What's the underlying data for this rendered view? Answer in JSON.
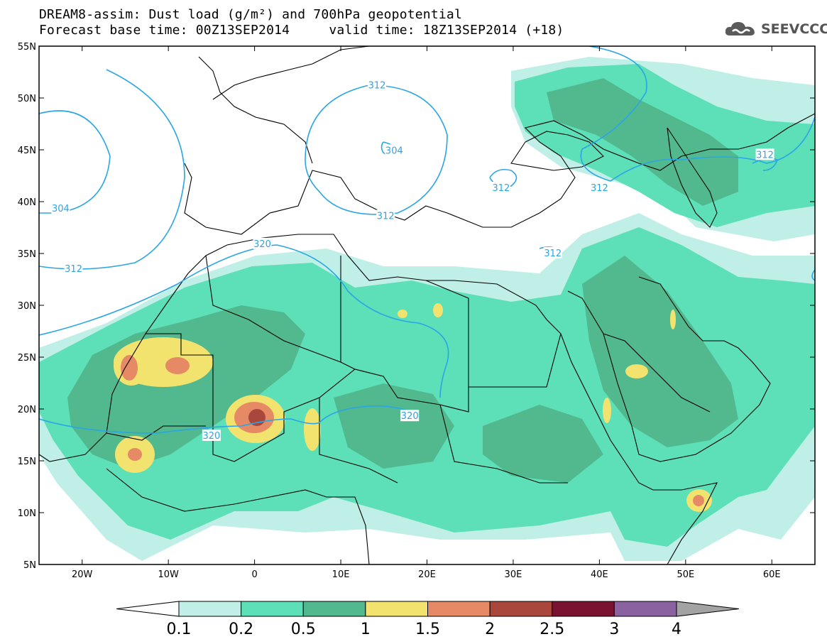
{
  "title": {
    "line1": "DREAM8-assim: Dust load (g/m²) and 700hPa geopotential",
    "line2": "Forecast base time: 00Z13SEP2014     valid time: 18Z13SEP2014 (+18)"
  },
  "brand": {
    "name": "SEEVCCC",
    "icon": "cloud-logo-icon"
  },
  "map": {
    "lon_range": [
      -25,
      65
    ],
    "lat_range": [
      5,
      55
    ],
    "lon_ticks": [
      {
        "value": -20,
        "label": "20W"
      },
      {
        "value": -10,
        "label": "10W"
      },
      {
        "value": 0,
        "label": "0"
      },
      {
        "value": 10,
        "label": "10E"
      },
      {
        "value": 20,
        "label": "20E"
      },
      {
        "value": 30,
        "label": "30E"
      },
      {
        "value": 40,
        "label": "40E"
      },
      {
        "value": 50,
        "label": "50E"
      },
      {
        "value": 60,
        "label": "60E"
      }
    ],
    "lat_ticks": [
      {
        "value": 55,
        "label": "55N"
      },
      {
        "value": 50,
        "label": "50N"
      },
      {
        "value": 45,
        "label": "45N"
      },
      {
        "value": 40,
        "label": "40N"
      },
      {
        "value": 35,
        "label": "35N"
      },
      {
        "value": 30,
        "label": "30N"
      },
      {
        "value": 25,
        "label": "25N"
      },
      {
        "value": 20,
        "label": "20N"
      },
      {
        "value": 15,
        "label": "15N"
      },
      {
        "value": 10,
        "label": "10N"
      },
      {
        "value": 5,
        "label": "5N"
      }
    ],
    "contour_labels": [
      {
        "text": "304",
        "lon": -22.5,
        "lat": 39.3
      },
      {
        "text": "312",
        "lon": -21.0,
        "lat": 33.5
      },
      {
        "text": "312",
        "lon": 14.2,
        "lat": 51.2
      },
      {
        "text": "304",
        "lon": 16.2,
        "lat": 44.9
      },
      {
        "text": "312",
        "lon": 15.2,
        "lat": 38.6
      },
      {
        "text": "312",
        "lon": 28.6,
        "lat": 41.3
      },
      {
        "text": "312",
        "lon": 40.0,
        "lat": 41.3
      },
      {
        "text": "312",
        "lon": 59.2,
        "lat": 44.5
      },
      {
        "text": "312",
        "lon": 34.6,
        "lat": 35.0
      },
      {
        "text": "320",
        "lon": 0.9,
        "lat": 35.9
      },
      {
        "text": "320",
        "lon": -5.0,
        "lat": 17.4
      },
      {
        "text": "320",
        "lon": 18.0,
        "lat": 19.3
      }
    ]
  },
  "colorbar": {
    "labels": [
      "0.1",
      "0.2",
      "0.5",
      "1",
      "1.5",
      "2",
      "2.5",
      "3",
      "4"
    ],
    "colors": [
      "#bfefe6",
      "#5ddfb8",
      "#52b98f",
      "#f2e26e",
      "#e68a66",
      "#a9473c",
      "#7a1232",
      "#8a62a0"
    ],
    "low_color": "#ffffff",
    "high_color": "#a3a3a3"
  },
  "colors": {
    "contour": "#2aa5e6",
    "coast": "#000000"
  }
}
